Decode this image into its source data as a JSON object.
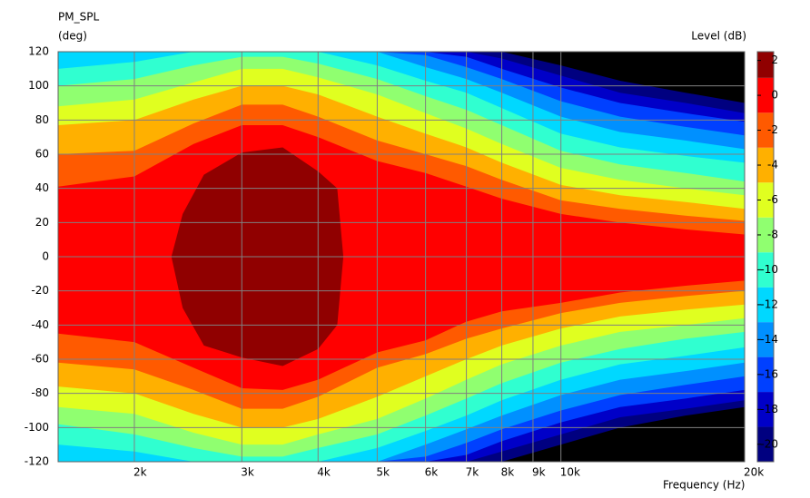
{
  "chart_data": {
    "type": "contour",
    "title": "PM_SPL",
    "y_label": "(deg)",
    "x_label": "Frequency (Hz)",
    "colorbar_label": "Level (dB)",
    "xscale": "log",
    "grid": true,
    "background": "#000000",
    "xlim": [
      1500,
      20000
    ],
    "xticks": [
      {
        "value": 2000,
        "label": "2k"
      },
      {
        "value": 3000,
        "label": "3k"
      },
      {
        "value": 4000,
        "label": "4k"
      },
      {
        "value": 5000,
        "label": "5k"
      },
      {
        "value": 6000,
        "label": "6k"
      },
      {
        "value": 7000,
        "label": "7k"
      },
      {
        "value": 8000,
        "label": "8k"
      },
      {
        "value": 9000,
        "label": "9k"
      },
      {
        "value": 10000,
        "label": "10k"
      },
      {
        "value": 20000,
        "label": "20k"
      }
    ],
    "ylim": [
      -120,
      120
    ],
    "yticks": [
      -120,
      -100,
      -80,
      -60,
      -40,
      -20,
      0,
      20,
      40,
      60,
      80,
      100,
      120
    ],
    "colorbar": {
      "ylim": [
        -21,
        2.5
      ],
      "yticks": [
        2,
        0,
        -2,
        -4,
        -6,
        -8,
        -10,
        -12,
        -14,
        -16,
        -18,
        -20
      ]
    },
    "x": [
      1500,
      2000,
      2500,
      3000,
      3500,
      4000,
      5000,
      6000,
      7000,
      8000,
      10000,
      12500,
      16000,
      20000
    ],
    "contours": [
      {
        "level": -21,
        "color": "#000080",
        "upper": [
          120,
          120,
          120,
          120,
          120,
          120,
          120,
          120,
          120,
          120,
          112,
          103,
          96,
          90
        ],
        "lower": [
          -120,
          -120,
          -120,
          -120,
          -120,
          -120,
          -120,
          -120,
          -120,
          -120,
          -110,
          -100,
          -93,
          -88
        ]
      },
      {
        "level": -19,
        "color": "#0000c8",
        "upper": [
          120,
          120,
          120,
          120,
          120,
          120,
          120,
          120,
          120,
          116,
          106,
          96,
          90,
          84
        ],
        "lower": [
          -120,
          -120,
          -120,
          -120,
          -120,
          -120,
          -120,
          -120,
          -120,
          -114,
          -104,
          -94,
          -89,
          -84
        ]
      },
      {
        "level": -17,
        "color": "#0040ff",
        "upper": [
          120,
          120,
          120,
          120,
          120,
          120,
          120,
          120,
          117,
          110,
          99,
          90,
          84,
          79
        ],
        "lower": [
          -120,
          -120,
          -120,
          -120,
          -120,
          -120,
          -120,
          -120,
          -116,
          -108,
          -97,
          -88,
          -83,
          -78
        ]
      },
      {
        "level": -15,
        "color": "#0090ff",
        "upper": [
          120,
          120,
          120,
          120,
          120,
          120,
          120,
          118,
          111,
          104,
          91,
          82,
          76,
          71
        ],
        "lower": [
          -120,
          -120,
          -120,
          -120,
          -120,
          -120,
          -120,
          -117,
          -109,
          -101,
          -90,
          -81,
          -75,
          -70
        ]
      },
      {
        "level": -13,
        "color": "#00d8ff",
        "upper": [
          120,
          120,
          120,
          120,
          120,
          120,
          120,
          111,
          104,
          96,
          82,
          73,
          68,
          63
        ],
        "lower": [
          -120,
          -120,
          -120,
          -120,
          -120,
          -120,
          -120,
          -110,
          -101,
          -93,
          -81,
          -72,
          -67,
          -62
        ]
      },
      {
        "level": -11,
        "color": "#30ffd0",
        "upper": [
          110,
          114,
          120,
          120,
          120,
          120,
          112,
          103,
          96,
          87,
          72,
          64,
          59,
          55
        ],
        "lower": [
          -110,
          -114,
          -120,
          -120,
          -120,
          -120,
          -112,
          -102,
          -93,
          -84,
          -72,
          -63,
          -58,
          -53
        ]
      },
      {
        "level": -9,
        "color": "#90ff70",
        "upper": [
          100,
          104,
          112,
          117,
          117,
          113,
          104,
          94,
          86,
          77,
          62,
          54,
          49,
          44
        ],
        "lower": [
          -98,
          -104,
          -112,
          -117,
          -117,
          -112,
          -104,
          -93,
          -83,
          -74,
          -62,
          -54,
          -48,
          -44
        ]
      },
      {
        "level": -7,
        "color": "#e0ff20",
        "upper": [
          88,
          92,
          102,
          110,
          110,
          105,
          95,
          84,
          75,
          66,
          52,
          45,
          40,
          36
        ],
        "lower": [
          -88,
          -92,
          -103,
          -110,
          -110,
          -104,
          -95,
          -83,
          -72,
          -63,
          -52,
          -44,
          -40,
          -36
        ]
      },
      {
        "level": -5,
        "color": "#ffb000",
        "upper": [
          77,
          80,
          92,
          100,
          100,
          95,
          82,
          72,
          64,
          55,
          42,
          36,
          32,
          28
        ],
        "lower": [
          -76,
          -80,
          -92,
          -100,
          -100,
          -95,
          -82,
          -70,
          -60,
          -52,
          -42,
          -35,
          -31,
          -28
        ]
      },
      {
        "level": -3,
        "color": "#ff5a00",
        "upper": [
          60,
          62,
          78,
          89,
          89,
          82,
          68,
          60,
          53,
          45,
          33,
          28,
          24,
          21
        ],
        "lower": [
          -62,
          -66,
          -78,
          -89,
          -89,
          -82,
          -65,
          -57,
          -48,
          -42,
          -33,
          -27,
          -23,
          -20
        ]
      },
      {
        "level": -1,
        "color": "#ff0000",
        "upper": [
          41,
          47,
          66,
          77,
          77,
          70,
          56,
          49,
          41,
          34,
          25,
          20,
          16,
          13
        ],
        "lower": [
          -45,
          -50,
          -65,
          -77,
          -78,
          -72,
          -56,
          -49,
          -38,
          -32,
          -27,
          -21,
          -17,
          -14
        ]
      },
      {
        "level": 1,
        "color": "#900000",
        "x": [
          2300,
          2400,
          2600,
          3000,
          3500,
          4000,
          4300,
          4400
        ],
        "upper": [
          0,
          25,
          48,
          61,
          64,
          50,
          40,
          0
        ],
        "lower": [
          0,
          -30,
          -52,
          -59,
          -64,
          -54,
          -40,
          0
        ]
      }
    ]
  }
}
